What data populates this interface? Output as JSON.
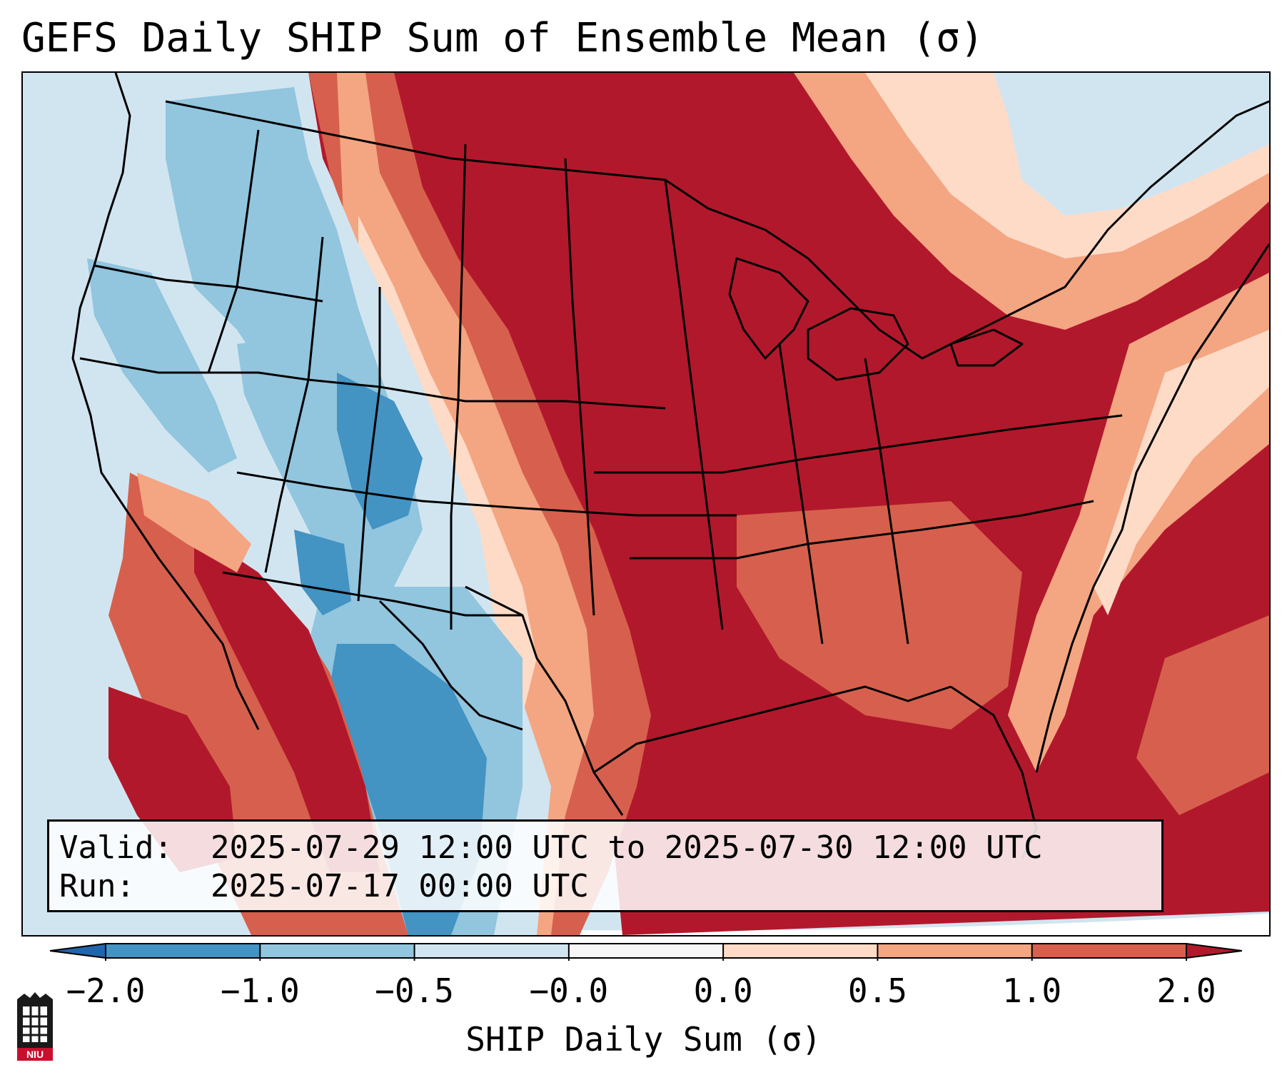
{
  "title": "GEFS Daily SHIP Sum of Ensemble Mean (σ)",
  "info": {
    "valid_label": "Valid:",
    "valid_value": "2025-07-29 12:00 UTC to 2025-07-30 12:00 UTC",
    "run_label": "Run:",
    "run_value": "2025-07-17 00:00 UTC"
  },
  "colorbar": {
    "label": "SHIP Daily Sum (σ)",
    "ticks": [
      "−2.0",
      "−1.0",
      "−0.5",
      "−0.0",
      "0.0",
      "0.5",
      "1.0",
      "2.0"
    ],
    "colors": [
      "#4393c3",
      "#92c5de",
      "#d1e5f0",
      "#f7f7f7",
      "#fddbc7",
      "#f4a582",
      "#d6604d"
    ],
    "extend_low_color": "#2166ac",
    "extend_high_color": "#b2182b"
  },
  "map": {
    "domain": "Contiguous United States",
    "palette": {
      "deep_red": "#b2182b",
      "red": "#d6604d",
      "salmon": "#f4a582",
      "peach": "#fddbc7",
      "pale_blue": "#d1e5f0",
      "light_blue": "#92c5de",
      "blue": "#4393c3"
    }
  },
  "logo": {
    "text": "NIU"
  }
}
